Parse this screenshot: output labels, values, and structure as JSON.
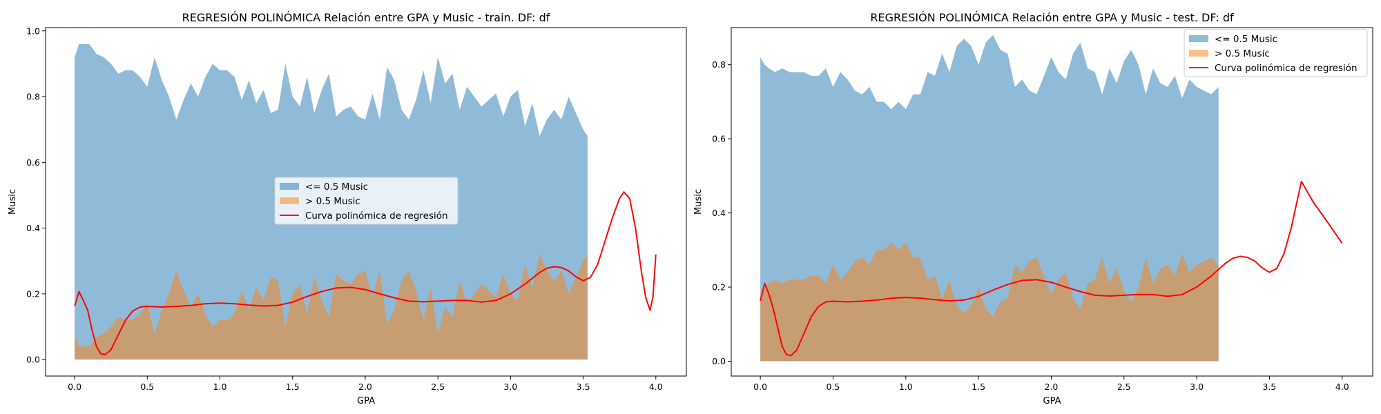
{
  "chart_data": [
    {
      "type": "area",
      "title": "REGRESIÓN POLINÓMICA Relación entre GPA y Music - train. DF: df",
      "xlabel": "GPA",
      "ylabel": "Music",
      "xlim": [
        -0.2,
        4.21
      ],
      "ylim": [
        -0.05,
        1.01
      ],
      "xticks": [
        0.0,
        0.5,
        1.0,
        1.5,
        2.0,
        2.5,
        3.0,
        3.5,
        4.0
      ],
      "yticks": [
        0.0,
        0.2,
        0.4,
        0.6,
        0.8,
        1.0
      ],
      "grid": false,
      "legend_placement": "center",
      "series": [
        {
          "name": "<= 0.5 Music",
          "kind": "fill",
          "color": "#1f77b4",
          "alpha": 0.5,
          "x": [
            0.0,
            0.03,
            0.06,
            0.1,
            0.15,
            0.2,
            0.25,
            0.3,
            0.35,
            0.4,
            0.45,
            0.5,
            0.55,
            0.6,
            0.65,
            0.7,
            0.75,
            0.8,
            0.85,
            0.9,
            0.95,
            1.0,
            1.05,
            1.1,
            1.15,
            1.2,
            1.25,
            1.3,
            1.35,
            1.4,
            1.45,
            1.5,
            1.55,
            1.6,
            1.65,
            1.7,
            1.75,
            1.8,
            1.85,
            1.9,
            1.95,
            2.0,
            2.05,
            2.1,
            2.15,
            2.2,
            2.25,
            2.3,
            2.35,
            2.4,
            2.45,
            2.5,
            2.55,
            2.6,
            2.65,
            2.7,
            2.75,
            2.8,
            2.85,
            2.9,
            2.95,
            3.0,
            3.05,
            3.1,
            3.15,
            3.2,
            3.25,
            3.3,
            3.35,
            3.4,
            3.45,
            3.5,
            3.53
          ],
          "y": [
            0.92,
            0.96,
            0.96,
            0.96,
            0.93,
            0.92,
            0.9,
            0.87,
            0.88,
            0.88,
            0.86,
            0.83,
            0.92,
            0.85,
            0.8,
            0.73,
            0.79,
            0.84,
            0.8,
            0.86,
            0.9,
            0.88,
            0.88,
            0.86,
            0.79,
            0.85,
            0.78,
            0.82,
            0.75,
            0.76,
            0.9,
            0.8,
            0.77,
            0.86,
            0.75,
            0.82,
            0.87,
            0.74,
            0.76,
            0.77,
            0.74,
            0.73,
            0.81,
            0.73,
            0.89,
            0.85,
            0.76,
            0.73,
            0.79,
            0.88,
            0.78,
            0.92,
            0.84,
            0.87,
            0.76,
            0.83,
            0.8,
            0.77,
            0.79,
            0.81,
            0.74,
            0.8,
            0.82,
            0.71,
            0.78,
            0.68,
            0.73,
            0.76,
            0.73,
            0.8,
            0.75,
            0.7,
            0.68
          ]
        },
        {
          "name": "> 0.5 Music",
          "kind": "fill",
          "color": "#ff7f0e",
          "alpha": 0.5,
          "x": [
            0.0,
            0.03,
            0.06,
            0.1,
            0.15,
            0.2,
            0.25,
            0.3,
            0.35,
            0.4,
            0.45,
            0.5,
            0.55,
            0.6,
            0.65,
            0.7,
            0.75,
            0.8,
            0.85,
            0.9,
            0.95,
            1.0,
            1.05,
            1.1,
            1.15,
            1.2,
            1.25,
            1.3,
            1.35,
            1.4,
            1.45,
            1.5,
            1.55,
            1.6,
            1.65,
            1.7,
            1.75,
            1.8,
            1.85,
            1.9,
            1.95,
            2.0,
            2.05,
            2.1,
            2.15,
            2.2,
            2.25,
            2.3,
            2.35,
            2.4,
            2.45,
            2.5,
            2.55,
            2.6,
            2.65,
            2.7,
            2.75,
            2.8,
            2.85,
            2.9,
            2.95,
            3.0,
            3.05,
            3.1,
            3.15,
            3.2,
            3.25,
            3.3,
            3.35,
            3.4,
            3.45,
            3.5,
            3.53
          ],
          "y": [
            0.08,
            0.04,
            0.04,
            0.04,
            0.07,
            0.08,
            0.1,
            0.13,
            0.12,
            0.12,
            0.14,
            0.17,
            0.08,
            0.15,
            0.2,
            0.27,
            0.21,
            0.16,
            0.2,
            0.14,
            0.1,
            0.12,
            0.12,
            0.14,
            0.21,
            0.15,
            0.22,
            0.18,
            0.25,
            0.24,
            0.1,
            0.2,
            0.23,
            0.14,
            0.25,
            0.18,
            0.13,
            0.26,
            0.24,
            0.23,
            0.26,
            0.27,
            0.19,
            0.27,
            0.11,
            0.15,
            0.24,
            0.27,
            0.21,
            0.12,
            0.22,
            0.08,
            0.16,
            0.13,
            0.24,
            0.17,
            0.2,
            0.23,
            0.21,
            0.19,
            0.26,
            0.2,
            0.18,
            0.29,
            0.22,
            0.32,
            0.27,
            0.24,
            0.27,
            0.2,
            0.25,
            0.3,
            0.32
          ]
        },
        {
          "name": "Curva polinómica de regresión",
          "kind": "line",
          "color": "#ff0000",
          "x": [
            0.0,
            0.03,
            0.06,
            0.09,
            0.12,
            0.15,
            0.18,
            0.21,
            0.25,
            0.3,
            0.35,
            0.4,
            0.45,
            0.5,
            0.6,
            0.7,
            0.8,
            0.9,
            1.0,
            1.1,
            1.2,
            1.3,
            1.4,
            1.5,
            1.6,
            1.7,
            1.8,
            1.9,
            2.0,
            2.1,
            2.2,
            2.3,
            2.4,
            2.5,
            2.6,
            2.7,
            2.8,
            2.9,
            3.0,
            3.1,
            3.2,
            3.25,
            3.3,
            3.35,
            3.4,
            3.45,
            3.5,
            3.55,
            3.6,
            3.65,
            3.7,
            3.75,
            3.78,
            3.82,
            3.86,
            3.9,
            3.93,
            3.96,
            3.98,
            4.0
          ],
          "y": [
            0.163,
            0.207,
            0.18,
            0.15,
            0.09,
            0.04,
            0.018,
            0.015,
            0.03,
            0.075,
            0.12,
            0.148,
            0.16,
            0.162,
            0.16,
            0.162,
            0.165,
            0.17,
            0.172,
            0.17,
            0.166,
            0.163,
            0.165,
            0.175,
            0.192,
            0.207,
            0.218,
            0.22,
            0.213,
            0.2,
            0.188,
            0.178,
            0.176,
            0.178,
            0.18,
            0.18,
            0.175,
            0.18,
            0.2,
            0.23,
            0.265,
            0.278,
            0.283,
            0.28,
            0.27,
            0.252,
            0.24,
            0.25,
            0.29,
            0.36,
            0.43,
            0.49,
            0.51,
            0.49,
            0.4,
            0.27,
            0.19,
            0.15,
            0.19,
            0.32
          ]
        }
      ]
    },
    {
      "type": "area",
      "title": "REGRESIÓN POLINÓMICA Relación entre GPA y Music - test. DF: df",
      "xlabel": "GPA",
      "ylabel": "Music",
      "xlim": [
        -0.2,
        4.21
      ],
      "ylim": [
        -0.04,
        0.9
      ],
      "xticks": [
        0.0,
        0.5,
        1.0,
        1.5,
        2.0,
        2.5,
        3.0,
        3.5,
        4.0
      ],
      "yticks": [
        0.0,
        0.2,
        0.4,
        0.6,
        0.8
      ],
      "grid": false,
      "legend_placement": "top-right",
      "series": [
        {
          "name": "<= 0.5 Music",
          "kind": "fill",
          "color": "#1f77b4",
          "alpha": 0.5,
          "x": [
            0.0,
            0.03,
            0.06,
            0.1,
            0.15,
            0.2,
            0.25,
            0.3,
            0.35,
            0.4,
            0.45,
            0.5,
            0.55,
            0.6,
            0.65,
            0.7,
            0.75,
            0.8,
            0.85,
            0.9,
            0.95,
            1.0,
            1.05,
            1.1,
            1.15,
            1.2,
            1.25,
            1.3,
            1.35,
            1.4,
            1.45,
            1.5,
            1.55,
            1.6,
            1.65,
            1.7,
            1.75,
            1.8,
            1.85,
            1.9,
            1.95,
            2.0,
            2.05,
            2.1,
            2.15,
            2.2,
            2.25,
            2.3,
            2.35,
            2.4,
            2.45,
            2.5,
            2.55,
            2.6,
            2.65,
            2.7,
            2.75,
            2.8,
            2.85,
            2.9,
            2.95,
            3.0,
            3.05,
            3.1,
            3.15
          ],
          "y": [
            0.82,
            0.8,
            0.79,
            0.78,
            0.79,
            0.78,
            0.78,
            0.78,
            0.77,
            0.77,
            0.79,
            0.74,
            0.78,
            0.76,
            0.73,
            0.72,
            0.74,
            0.7,
            0.7,
            0.68,
            0.7,
            0.68,
            0.72,
            0.72,
            0.78,
            0.77,
            0.83,
            0.78,
            0.85,
            0.87,
            0.85,
            0.8,
            0.86,
            0.88,
            0.84,
            0.83,
            0.74,
            0.76,
            0.73,
            0.72,
            0.77,
            0.82,
            0.78,
            0.76,
            0.83,
            0.86,
            0.79,
            0.78,
            0.72,
            0.79,
            0.75,
            0.81,
            0.84,
            0.8,
            0.72,
            0.79,
            0.75,
            0.74,
            0.77,
            0.71,
            0.76,
            0.74,
            0.73,
            0.72,
            0.74
          ]
        },
        {
          "name": "> 0.5 Music",
          "kind": "fill",
          "color": "#ff7f0e",
          "alpha": 0.5,
          "x": [
            0.0,
            0.03,
            0.06,
            0.1,
            0.15,
            0.2,
            0.25,
            0.3,
            0.35,
            0.4,
            0.45,
            0.5,
            0.55,
            0.6,
            0.65,
            0.7,
            0.75,
            0.8,
            0.85,
            0.9,
            0.95,
            1.0,
            1.05,
            1.1,
            1.15,
            1.2,
            1.25,
            1.3,
            1.35,
            1.4,
            1.45,
            1.5,
            1.55,
            1.6,
            1.65,
            1.7,
            1.75,
            1.8,
            1.85,
            1.9,
            1.95,
            2.0,
            2.05,
            2.1,
            2.15,
            2.2,
            2.25,
            2.3,
            2.35,
            2.4,
            2.45,
            2.5,
            2.55,
            2.6,
            2.65,
            2.7,
            2.75,
            2.8,
            2.85,
            2.9,
            2.95,
            3.0,
            3.05,
            3.1,
            3.15
          ],
          "y": [
            0.18,
            0.2,
            0.21,
            0.22,
            0.21,
            0.22,
            0.22,
            0.22,
            0.23,
            0.23,
            0.21,
            0.26,
            0.22,
            0.24,
            0.27,
            0.28,
            0.26,
            0.3,
            0.3,
            0.32,
            0.3,
            0.32,
            0.28,
            0.28,
            0.22,
            0.23,
            0.17,
            0.22,
            0.15,
            0.13,
            0.15,
            0.2,
            0.14,
            0.12,
            0.16,
            0.17,
            0.26,
            0.24,
            0.27,
            0.28,
            0.23,
            0.18,
            0.22,
            0.24,
            0.17,
            0.14,
            0.21,
            0.22,
            0.28,
            0.21,
            0.25,
            0.19,
            0.16,
            0.2,
            0.28,
            0.21,
            0.25,
            0.26,
            0.23,
            0.29,
            0.24,
            0.26,
            0.27,
            0.28,
            0.26
          ]
        },
        {
          "name": "Curva polinómica de regresión",
          "kind": "line",
          "color": "#ff0000",
          "x": [
            0.0,
            0.03,
            0.06,
            0.09,
            0.12,
            0.15,
            0.18,
            0.21,
            0.25,
            0.3,
            0.35,
            0.4,
            0.45,
            0.5,
            0.6,
            0.7,
            0.8,
            0.9,
            1.0,
            1.1,
            1.2,
            1.3,
            1.4,
            1.5,
            1.6,
            1.7,
            1.8,
            1.9,
            2.0,
            2.1,
            2.2,
            2.3,
            2.4,
            2.5,
            2.6,
            2.7,
            2.8,
            2.9,
            3.0,
            3.1,
            3.2,
            3.25,
            3.3,
            3.35,
            3.4,
            3.45,
            3.5,
            3.55,
            3.6,
            3.65,
            3.72,
            3.8,
            3.9,
            4.0
          ],
          "y": [
            0.163,
            0.21,
            0.18,
            0.14,
            0.09,
            0.04,
            0.018,
            0.015,
            0.03,
            0.075,
            0.12,
            0.148,
            0.16,
            0.162,
            0.16,
            0.162,
            0.165,
            0.17,
            0.172,
            0.17,
            0.166,
            0.163,
            0.165,
            0.175,
            0.192,
            0.207,
            0.218,
            0.22,
            0.213,
            0.2,
            0.188,
            0.178,
            0.176,
            0.178,
            0.18,
            0.18,
            0.175,
            0.18,
            0.2,
            0.23,
            0.265,
            0.278,
            0.283,
            0.28,
            0.27,
            0.252,
            0.24,
            0.25,
            0.29,
            0.36,
            0.485,
            0.43,
            0.375,
            0.318
          ]
        }
      ]
    }
  ]
}
